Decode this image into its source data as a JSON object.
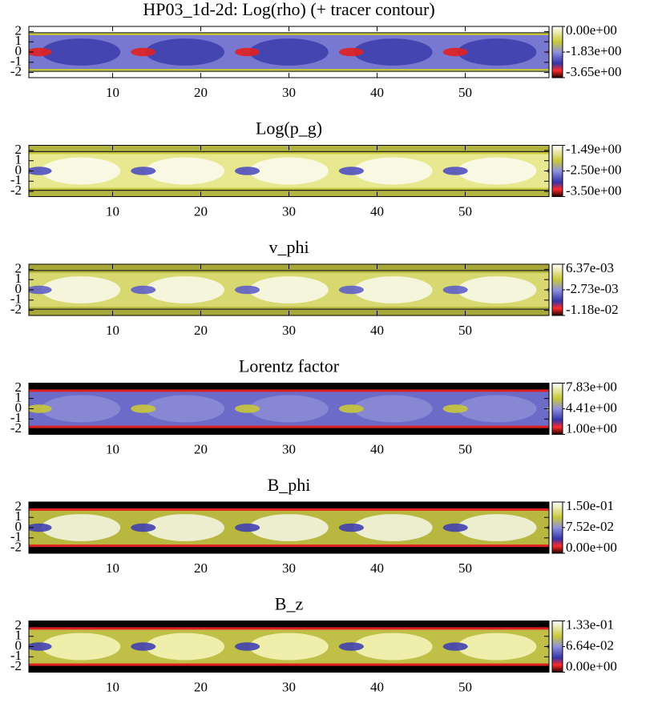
{
  "chart_data": [
    {
      "type": "heatmap",
      "title": "HP03_1d-2d: Log(rho) (+ tracer contour)",
      "xlim": [
        0.5,
        59.5
      ],
      "ylim": [
        -2.5,
        2.5
      ],
      "xticks": [
        10,
        20,
        30,
        40,
        50
      ],
      "yticks": [
        -2,
        -1,
        0,
        1,
        2
      ],
      "clim": [
        -3.65,
        0
      ],
      "cticks": [
        {
          "value": 0,
          "label": "0.00e+00"
        },
        {
          "value": -1.83,
          "label": "-1.83e+00"
        },
        {
          "value": -3.65,
          "label": "-3.65e+00"
        }
      ]
    },
    {
      "type": "heatmap",
      "title": "Log(p_g)",
      "xlim": [
        0.5,
        59.5
      ],
      "ylim": [
        -2.5,
        2.5
      ],
      "xticks": [
        10,
        20,
        30,
        40,
        50
      ],
      "yticks": [
        -2,
        -1,
        0,
        1,
        2
      ],
      "clim": [
        -3.5,
        -1.49
      ],
      "cticks": [
        {
          "value": -1.49,
          "label": "-1.49e+00"
        },
        {
          "value": -2.5,
          "label": "-2.50e+00"
        },
        {
          "value": -3.5,
          "label": "-3.50e+00"
        }
      ]
    },
    {
      "type": "heatmap",
      "title": "v_phi",
      "xlim": [
        0.5,
        59.5
      ],
      "ylim": [
        -2.5,
        2.5
      ],
      "xticks": [
        10,
        20,
        30,
        40,
        50
      ],
      "yticks": [
        -2,
        -1,
        0,
        1,
        2
      ],
      "clim": [
        -0.0118,
        0.00637
      ],
      "cticks": [
        {
          "value": 0.00637,
          "label": "6.37e-03"
        },
        {
          "value": -0.00273,
          "label": "-2.73e-03"
        },
        {
          "value": -0.0118,
          "label": "-1.18e-02"
        }
      ]
    },
    {
      "type": "heatmap",
      "title": "Lorentz factor",
      "xlim": [
        0.5,
        59.5
      ],
      "ylim": [
        -2.5,
        2.5
      ],
      "xticks": [
        10,
        20,
        30,
        40,
        50
      ],
      "yticks": [
        -2,
        -1,
        0,
        1,
        2
      ],
      "clim": [
        1,
        7.83
      ],
      "cticks": [
        {
          "value": 7.83,
          "label": "7.83e+00"
        },
        {
          "value": 4.41,
          "label": "4.41e+00"
        },
        {
          "value": 1,
          "label": "1.00e+00"
        }
      ]
    },
    {
      "type": "heatmap",
      "title": "B_phi",
      "xlim": [
        0.5,
        59.5
      ],
      "ylim": [
        -2.5,
        2.5
      ],
      "xticks": [
        10,
        20,
        30,
        40,
        50
      ],
      "yticks": [
        -2,
        -1,
        0,
        1,
        2
      ],
      "clim": [
        0,
        0.15
      ],
      "cticks": [
        {
          "value": 0.15,
          "label": "1.50e-01"
        },
        {
          "value": 0.0752,
          "label": "7.52e-02"
        },
        {
          "value": 0,
          "label": "0.00e+00"
        }
      ]
    },
    {
      "type": "heatmap",
      "title": "B_z",
      "xlim": [
        0.5,
        59.5
      ],
      "ylim": [
        -2.5,
        2.5
      ],
      "xticks": [
        10,
        20,
        30,
        40,
        50
      ],
      "yticks": [
        -2,
        -1,
        0,
        1,
        2
      ],
      "clim": [
        0,
        0.133
      ],
      "cticks": [
        {
          "value": 0.133,
          "label": "1.33e-01"
        },
        {
          "value": 0.0664,
          "label": "6.64e-02"
        },
        {
          "value": 0,
          "label": "0.00e+00"
        }
      ]
    }
  ]
}
